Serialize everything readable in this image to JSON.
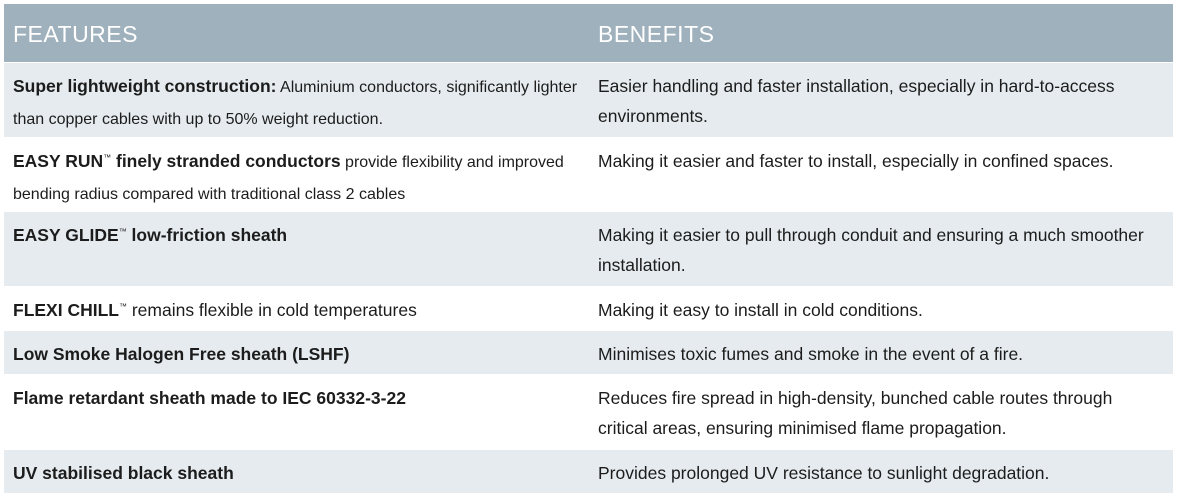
{
  "header": {
    "features": "FEATURES",
    "benefits": "BENEFITS"
  },
  "rows": [
    {
      "feature_bold": "Super lightweight construction:",
      "feature_tm": "",
      "feature_bold2": "",
      "feature_rest": " Aluminium conductors, significantly lighter than copper cables with up to 50% weight reduction.",
      "benefit": "Easier handling and faster installation, especially in hard-to-access environments."
    },
    {
      "feature_bold": "EASY RUN",
      "feature_tm": "™",
      "feature_bold2": " finely stranded conductors",
      "feature_rest": " provide flexibility and improved bending radius compared with traditional class 2 cables",
      "benefit": "Making it easier and faster to install, especially in confined spaces."
    },
    {
      "feature_bold": "EASY GLIDE",
      "feature_tm": "™",
      "feature_bold2": " low-friction sheath",
      "feature_rest": "",
      "benefit": "Making it easier to pull through conduit and ensuring a much smoother installation."
    },
    {
      "feature_bold": "FLEXI CHILL",
      "feature_tm": "™",
      "feature_bold2": "",
      "feature_rest": " remains flexible in cold temperatures",
      "benefit": "Making it easy to install in cold conditions."
    },
    {
      "feature_bold": "Low Smoke Halogen Free sheath (LSHF)",
      "feature_tm": "",
      "feature_bold2": "",
      "feature_rest": "",
      "benefit": "Minimises toxic fumes and smoke in the event of a fire."
    },
    {
      "feature_bold": "Flame retardant sheath made to IEC 60332-3-22",
      "feature_tm": "",
      "feature_bold2": "",
      "feature_rest": "",
      "benefit": "Reduces fire spread in high-density, bunched cable routes through critical areas, ensuring minimised flame propagation."
    },
    {
      "feature_bold": "UV stabilised black sheath",
      "feature_tm": "",
      "feature_bold2": "",
      "feature_rest": "",
      "benefit": "Provides prolonged UV resistance to sunlight degradation."
    }
  ]
}
